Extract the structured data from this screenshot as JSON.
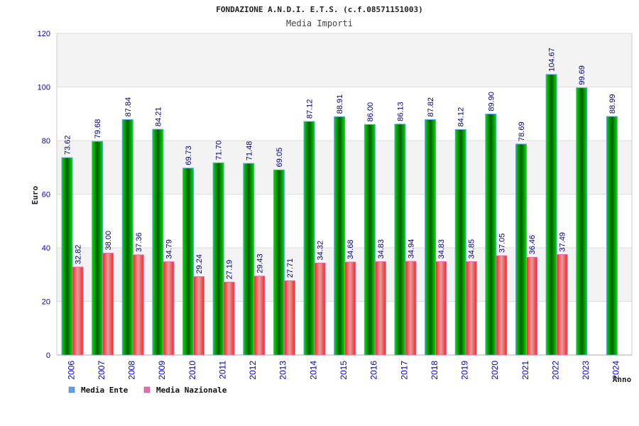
{
  "chart_data": {
    "type": "bar",
    "title": "FONDAZIONE A.N.D.I. E.T.S. (c.f.08571151003)",
    "subtitle": "Media Importi",
    "xlabel": "Anno",
    "ylabel": "Euro",
    "ylim": [
      0,
      120
    ],
    "yticks": [
      0,
      20,
      40,
      60,
      80,
      100,
      120
    ],
    "grid": true,
    "legend_position": "bottom-left",
    "categories": [
      "2006",
      "2007",
      "2008",
      "2009",
      "2010",
      "2011",
      "2012",
      "2013",
      "2014",
      "2015",
      "2016",
      "2017",
      "2018",
      "2019",
      "2020",
      "2021",
      "2022",
      "2023",
      "2024"
    ],
    "series": [
      {
        "name": "Media Ente",
        "color": "#00a000",
        "legend_color": "#5f9fe8",
        "values": [
          73.62,
          79.68,
          87.84,
          84.21,
          69.73,
          71.7,
          71.48,
          69.05,
          87.12,
          88.91,
          86.0,
          86.13,
          87.82,
          84.12,
          89.9,
          78.69,
          104.67,
          99.69,
          88.99
        ]
      },
      {
        "name": "Media Nazionale",
        "color": "#ee2020",
        "legend_color": "#e070b0",
        "values": [
          32.82,
          38.0,
          37.36,
          34.79,
          29.24,
          27.19,
          29.43,
          27.71,
          34.32,
          34.68,
          34.83,
          34.94,
          34.83,
          34.85,
          37.05,
          36.46,
          37.49,
          null,
          null
        ]
      }
    ]
  }
}
